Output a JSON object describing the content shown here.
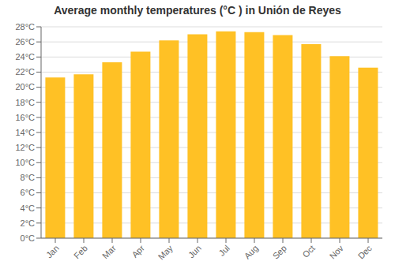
{
  "chart_data": {
    "type": "bar",
    "title": "Average monthly temperatures (°C ) in Unión de Reyes",
    "categories": [
      "Jan",
      "Feb",
      "Mar",
      "Apr",
      "May",
      "Jun",
      "Jul",
      "Aug",
      "Sep",
      "Oct",
      "Nov",
      "Dec"
    ],
    "values": [
      21.3,
      21.7,
      23.3,
      24.7,
      26.2,
      27.0,
      27.4,
      27.3,
      26.9,
      25.7,
      24.1,
      22.6
    ],
    "color": "#FFC125",
    "ylim": [
      0,
      28
    ],
    "yticks": [
      {
        "value": 0,
        "label": "0°C"
      },
      {
        "value": 2,
        "label": "2°C"
      },
      {
        "value": 4,
        "label": "4°C"
      },
      {
        "value": 6,
        "label": "6°C"
      },
      {
        "value": 8,
        "label": "8°C"
      },
      {
        "value": 10,
        "label": "10°C"
      },
      {
        "value": 12,
        "label": "12°C"
      },
      {
        "value": 14,
        "label": "14°C"
      },
      {
        "value": 16,
        "label": "16°C"
      },
      {
        "value": 18,
        "label": "18°C"
      },
      {
        "value": 20,
        "label": "20°C"
      },
      {
        "value": 22,
        "label": "22°C"
      },
      {
        "value": 24,
        "label": "24°C"
      },
      {
        "value": 26,
        "label": "26°C"
      },
      {
        "value": 28,
        "label": "28°C"
      }
    ],
    "grid": true
  }
}
